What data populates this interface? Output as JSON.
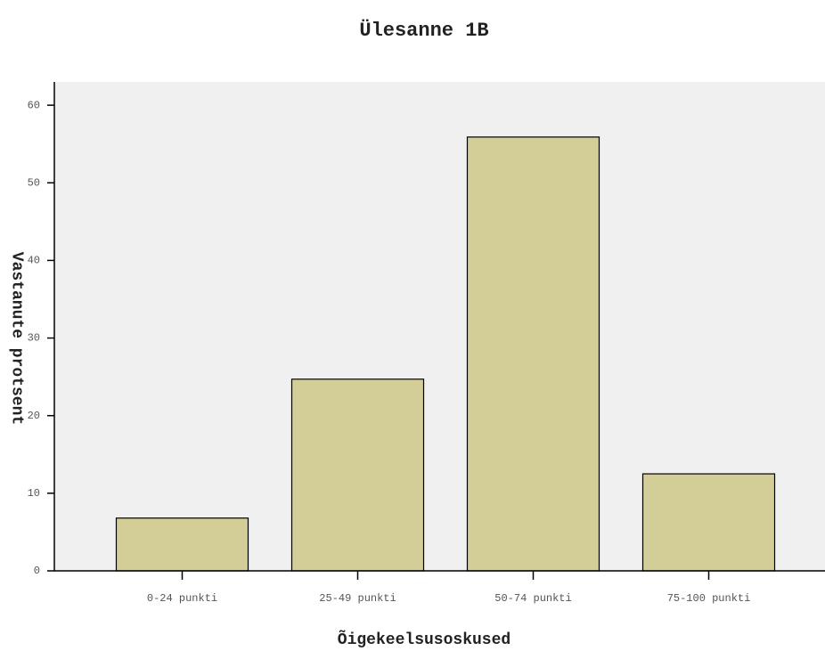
{
  "chart_data": {
    "type": "bar",
    "title": "Ülesanne 1B",
    "x_label": "Õigekeelsusoskused",
    "y_label": "Vastanute protsent",
    "categories": [
      "0-24 punkti",
      "25-49 punkti",
      "50-74 punkti",
      "75-100 punkti"
    ],
    "values": [
      6.8,
      24.7,
      55.9,
      12.5
    ],
    "color": "#d3ce97",
    "ylim": [
      0,
      63
    ],
    "yticks": [
      0,
      10,
      20,
      30,
      40,
      50,
      60
    ],
    "grid": false
  }
}
